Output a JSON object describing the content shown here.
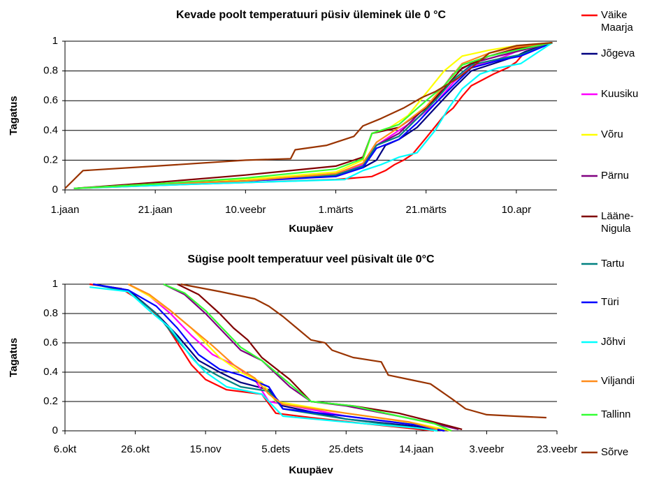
{
  "chart_data": [
    {
      "type": "line",
      "title": "Kevade poolt temperatuuri püsiv üleminek üle 0 °C",
      "xlabel": "Kuupäev",
      "ylabel": "Tagatus",
      "xlim": [
        0,
        109
      ],
      "ylim": [
        0,
        1
      ],
      "xticks": [
        {
          "value": 0,
          "label": "1.jaan"
        },
        {
          "value": 20,
          "label": "21.jaan"
        },
        {
          "value": 40,
          "label": "10.veebr"
        },
        {
          "value": 60,
          "label": "1.märts"
        },
        {
          "value": 80,
          "label": "21.märts"
        },
        {
          "value": 100,
          "label": "10.apr"
        }
      ],
      "yticks": [
        0,
        0.2,
        0.4,
        0.6,
        0.8,
        1
      ],
      "grid": true,
      "legend": "right",
      "series": [
        {
          "name": "Väike Maarja",
          "color": "#ff0000",
          "x": [
            2,
            20,
            40,
            60,
            68,
            71,
            73,
            75,
            77,
            80,
            84,
            86,
            88,
            90,
            95,
            98,
            100,
            102,
            108
          ],
          "values": [
            0.01,
            0.03,
            0.05,
            0.07,
            0.09,
            0.13,
            0.17,
            0.2,
            0.24,
            0.35,
            0.5,
            0.55,
            0.63,
            0.7,
            0.78,
            0.82,
            0.86,
            0.93,
            0.99
          ]
        },
        {
          "name": "Jõgeva",
          "color": "#000080",
          "x": [
            2,
            20,
            40,
            60,
            66,
            69,
            71,
            74,
            78,
            82,
            86,
            90,
            95,
            100,
            102,
            108
          ],
          "values": [
            0.01,
            0.04,
            0.06,
            0.1,
            0.15,
            0.2,
            0.3,
            0.34,
            0.42,
            0.55,
            0.68,
            0.8,
            0.85,
            0.9,
            0.93,
            0.99
          ]
        },
        {
          "name": "Kuusiku",
          "color": "#ff00ff",
          "x": [
            2,
            20,
            40,
            60,
            66,
            69,
            73,
            78,
            82,
            86,
            90,
            96,
            100,
            108
          ],
          "values": [
            0.01,
            0.04,
            0.06,
            0.1,
            0.17,
            0.3,
            0.38,
            0.48,
            0.58,
            0.72,
            0.83,
            0.88,
            0.93,
            0.99
          ]
        },
        {
          "name": "Võru",
          "color": "#ffff00",
          "x": [
            2,
            20,
            40,
            60,
            66,
            68,
            72,
            76,
            80,
            84,
            88,
            94,
            100,
            108
          ],
          "values": [
            0.01,
            0.04,
            0.07,
            0.12,
            0.2,
            0.38,
            0.42,
            0.5,
            0.65,
            0.8,
            0.9,
            0.94,
            0.97,
            0.99
          ]
        },
        {
          "name": "Pärnu",
          "color": "#800080",
          "x": [
            2,
            20,
            40,
            60,
            66,
            69,
            74,
            78,
            82,
            86,
            90,
            96,
            100,
            108
          ],
          "values": [
            0.01,
            0.04,
            0.06,
            0.1,
            0.16,
            0.3,
            0.38,
            0.5,
            0.62,
            0.78,
            0.85,
            0.9,
            0.93,
            0.99
          ]
        },
        {
          "name": "Lääne-Nigula",
          "color": "#800000",
          "x": [
            2,
            20,
            40,
            60,
            66,
            68,
            74,
            80,
            84,
            88,
            94,
            100,
            108
          ],
          "values": [
            0.01,
            0.05,
            0.1,
            0.16,
            0.22,
            0.38,
            0.42,
            0.55,
            0.68,
            0.82,
            0.9,
            0.95,
            0.99
          ]
        },
        {
          "name": "Tartu",
          "color": "#008080",
          "x": [
            2,
            20,
            40,
            60,
            66,
            69,
            74,
            78,
            82,
            86,
            90,
            96,
            101,
            108
          ],
          "values": [
            0.01,
            0.04,
            0.06,
            0.1,
            0.16,
            0.3,
            0.36,
            0.48,
            0.6,
            0.74,
            0.84,
            0.88,
            0.91,
            0.99
          ]
        },
        {
          "name": "Türi",
          "color": "#0000ff",
          "x": [
            2,
            20,
            40,
            60,
            66,
            69,
            74,
            78,
            82,
            86,
            90,
            96,
            101,
            108
          ],
          "values": [
            0.01,
            0.04,
            0.06,
            0.09,
            0.15,
            0.28,
            0.34,
            0.45,
            0.58,
            0.7,
            0.82,
            0.87,
            0.9,
            0.99
          ]
        },
        {
          "name": "Jõhvi",
          "color": "#00ffff",
          "x": [
            2,
            20,
            40,
            62,
            66,
            70,
            74,
            78,
            82,
            85,
            88,
            92,
            96,
            101,
            108
          ],
          "values": [
            0.01,
            0.03,
            0.05,
            0.07,
            0.13,
            0.17,
            0.22,
            0.25,
            0.4,
            0.55,
            0.68,
            0.78,
            0.82,
            0.85,
            0.99
          ]
        },
        {
          "name": "Viljandi",
          "color": "#ff8c1a",
          "x": [
            2,
            20,
            40,
            60,
            66,
            69,
            74,
            80,
            84,
            88,
            94,
            100,
            108
          ],
          "values": [
            0.01,
            0.04,
            0.06,
            0.11,
            0.18,
            0.32,
            0.42,
            0.56,
            0.7,
            0.85,
            0.92,
            0.96,
            0.99
          ]
        },
        {
          "name": "Tallinn",
          "color": "#33ff33",
          "x": [
            2,
            20,
            40,
            60,
            66,
            68,
            74,
            80,
            84,
            88,
            94,
            100,
            108
          ],
          "values": [
            0.01,
            0.04,
            0.08,
            0.14,
            0.21,
            0.38,
            0.44,
            0.6,
            0.7,
            0.84,
            0.9,
            0.94,
            0.99
          ]
        },
        {
          "name": "Sõrve",
          "color": "#993300",
          "x": [
            0,
            2,
            4,
            20,
            40,
            50,
            51,
            58,
            64,
            66,
            70,
            75,
            79,
            82,
            87,
            90,
            94,
            100,
            108
          ],
          "values": [
            0.01,
            0.07,
            0.13,
            0.16,
            0.2,
            0.21,
            0.27,
            0.3,
            0.36,
            0.43,
            0.48,
            0.55,
            0.62,
            0.66,
            0.75,
            0.82,
            0.92,
            0.97,
            0.99
          ]
        }
      ]
    },
    {
      "type": "line",
      "title": "Sügise poolt temperatuur veel püsivalt üle  0°C",
      "xlabel": "Kuupäev",
      "ylabel": "Tagatus",
      "xlim": [
        0,
        140
      ],
      "ylim": [
        0,
        1
      ],
      "xticks": [
        {
          "value": 0,
          "label": "6.okt"
        },
        {
          "value": 20,
          "label": "26.okt"
        },
        {
          "value": 40,
          "label": "15.nov"
        },
        {
          "value": 60,
          "label": "5.dets"
        },
        {
          "value": 80,
          "label": "25.dets"
        },
        {
          "value": 100,
          "label": "14.jaan"
        },
        {
          "value": 120,
          "label": "3.veebr"
        },
        {
          "value": 140,
          "label": "23.veebr"
        }
      ],
      "yticks": [
        0,
        0.2,
        0.4,
        0.6,
        0.8,
        1
      ],
      "grid": true,
      "series": [
        {
          "color": "#ff0000",
          "x": [
            7,
            16,
            22,
            28,
            32,
            36,
            40,
            46,
            56,
            60,
            70,
            85,
            97,
            105
          ],
          "values": [
            1,
            0.97,
            0.88,
            0.75,
            0.6,
            0.45,
            0.35,
            0.28,
            0.25,
            0.12,
            0.09,
            0.05,
            0.02,
            0
          ]
        },
        {
          "color": "#000080",
          "x": [
            8,
            18,
            26,
            32,
            38,
            44,
            50,
            58,
            62,
            80,
            100,
            108
          ],
          "values": [
            1,
            0.96,
            0.8,
            0.65,
            0.48,
            0.4,
            0.33,
            0.28,
            0.17,
            0.08,
            0.03,
            0
          ]
        },
        {
          "color": "#ff00ff",
          "x": [
            18,
            24,
            30,
            36,
            42,
            48,
            54,
            58,
            80,
            100,
            108
          ],
          "values": [
            1,
            0.92,
            0.8,
            0.65,
            0.52,
            0.45,
            0.35,
            0.2,
            0.1,
            0.04,
            0
          ]
        },
        {
          "color": "#ffff00",
          "x": [
            18,
            24,
            30,
            36,
            40,
            44,
            50,
            56,
            60,
            80,
            100,
            110
          ],
          "values": [
            1,
            0.92,
            0.82,
            0.7,
            0.6,
            0.5,
            0.4,
            0.33,
            0.2,
            0.12,
            0.05,
            0
          ]
        },
        {
          "color": "#800080",
          "x": [
            28,
            34,
            40,
            46,
            50,
            56,
            64,
            70,
            80,
            95,
            105,
            112
          ],
          "values": [
            1,
            0.93,
            0.8,
            0.65,
            0.55,
            0.48,
            0.3,
            0.2,
            0.17,
            0.1,
            0.05,
            0.01
          ]
        },
        {
          "color": "#800000",
          "x": [
            32,
            38,
            44,
            48,
            52,
            56,
            64,
            70,
            82,
            95,
            105,
            113
          ],
          "values": [
            1,
            0.93,
            0.8,
            0.7,
            0.62,
            0.5,
            0.35,
            0.2,
            0.17,
            0.12,
            0.06,
            0.01
          ]
        },
        {
          "color": "#008080",
          "x": [
            8,
            18,
            26,
            32,
            38,
            44,
            50,
            58,
            62,
            80,
            100,
            106
          ],
          "values": [
            1,
            0.95,
            0.8,
            0.62,
            0.45,
            0.37,
            0.3,
            0.27,
            0.15,
            0.08,
            0.02,
            0
          ]
        },
        {
          "color": "#0000ff",
          "x": [
            8,
            18,
            26,
            32,
            38,
            44,
            50,
            58,
            62,
            80,
            100,
            108
          ],
          "values": [
            1,
            0.96,
            0.85,
            0.7,
            0.52,
            0.42,
            0.38,
            0.3,
            0.15,
            0.1,
            0.04,
            0
          ]
        },
        {
          "color": "#00ffff",
          "x": [
            7,
            18,
            24,
            30,
            36,
            40,
            46,
            56,
            62,
            80,
            100,
            106
          ],
          "values": [
            0.98,
            0.95,
            0.82,
            0.7,
            0.5,
            0.4,
            0.3,
            0.25,
            0.1,
            0.06,
            0.02,
            0
          ]
        },
        {
          "color": "#ff8c1a",
          "x": [
            18,
            24,
            30,
            36,
            42,
            48,
            54,
            58,
            62,
            80,
            98,
            106
          ],
          "values": [
            1,
            0.93,
            0.82,
            0.7,
            0.58,
            0.45,
            0.36,
            0.25,
            0.18,
            0.12,
            0.06,
            0.01
          ]
        },
        {
          "color": "#33ff33",
          "x": [
            28,
            34,
            40,
            46,
            50,
            56,
            64,
            70,
            82,
            95,
            105,
            110
          ],
          "values": [
            1,
            0.94,
            0.82,
            0.67,
            0.57,
            0.48,
            0.32,
            0.2,
            0.17,
            0.1,
            0.05,
            0
          ]
        },
        {
          "color": "#993300",
          "x": [
            33,
            44,
            54,
            58,
            62,
            66,
            70,
            74,
            76,
            82,
            90,
            92,
            98,
            104,
            110,
            114,
            120,
            128,
            137
          ],
          "values": [
            1,
            0.95,
            0.9,
            0.85,
            0.78,
            0.7,
            0.62,
            0.6,
            0.55,
            0.5,
            0.47,
            0.38,
            0.35,
            0.32,
            0.22,
            0.15,
            0.11,
            0.1,
            0.09
          ]
        }
      ]
    }
  ]
}
